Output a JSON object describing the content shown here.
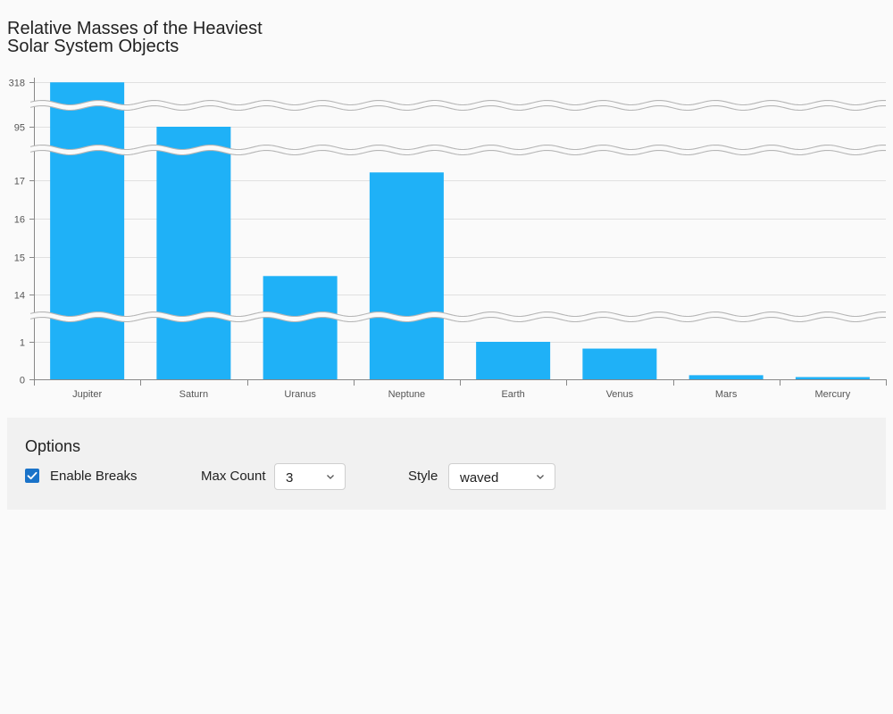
{
  "chart_data": {
    "type": "bar",
    "title_lines": [
      "Relative Masses of the Heaviest",
      "Solar System Objects"
    ],
    "categories": [
      "Jupiter",
      "Saturn",
      "Uranus",
      "Neptune",
      "Earth",
      "Venus",
      "Mars",
      "Mercury"
    ],
    "values": [
      318,
      95,
      14.5,
      17.2,
      1,
      0.82,
      0.11,
      0.06
    ],
    "y_tick_labels": [
      "0",
      "1",
      "14",
      "15",
      "16",
      "17",
      "95",
      "318"
    ],
    "axis_breaks": [
      [
        1.5,
        13.6
      ],
      [
        17.6,
        94.4
      ],
      [
        95.6,
        317.4
      ]
    ],
    "break_style": "waved",
    "bar_color": "#1fb1f7",
    "grid": true,
    "legend": "none"
  },
  "options": {
    "title": "Options",
    "enable_breaks_label": "Enable Breaks",
    "enable_breaks_checked": true,
    "max_count_label": "Max Count",
    "max_count_value": "3",
    "style_label": "Style",
    "style_value": "waved",
    "accent_color": "#1a73c9"
  }
}
